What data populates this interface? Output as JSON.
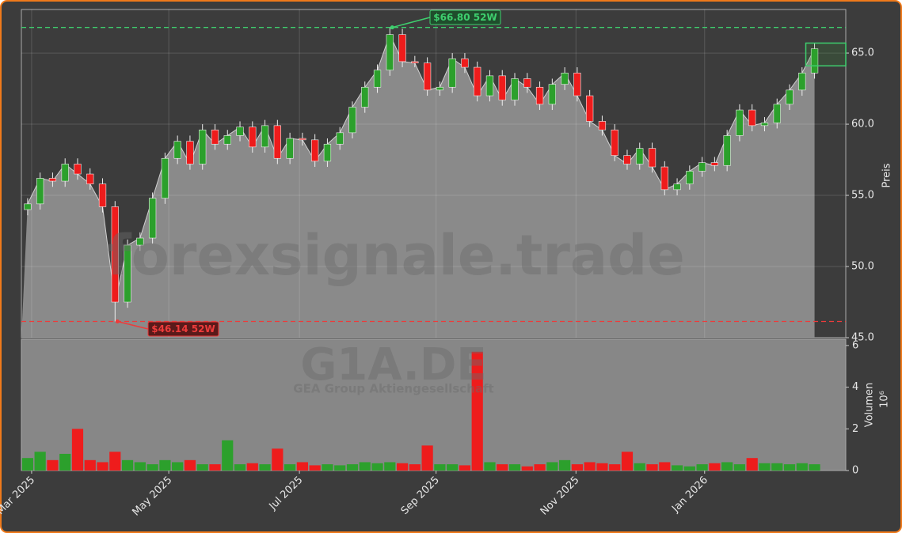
{
  "chart_data": {
    "type": "candlestick",
    "watermark": "forexsignale.trade",
    "symbol": "G1A.DE",
    "company": "GEA Group Aktiengesellschaft",
    "ylabel": "Preis",
    "volume_label": "Volumen",
    "volume_unit": "10⁶",
    "open": [
      54.0,
      54.4,
      56.2,
      56.0,
      57.2,
      56.5,
      55.8,
      54.2,
      47.5,
      51.5,
      52.0,
      54.8,
      57.6,
      58.8,
      57.2,
      59.6,
      58.6,
      59.2,
      59.8,
      58.4,
      59.9,
      57.6,
      59.0,
      58.9,
      57.4,
      58.6,
      59.4,
      61.2,
      62.6,
      63.8,
      66.3,
      64.4,
      64.3,
      62.4,
      62.6,
      64.6,
      64.0,
      62.0,
      63.4,
      61.7,
      63.2,
      62.6,
      61.4,
      62.8,
      63.6,
      62.0,
      60.2,
      59.6,
      57.8,
      57.2,
      58.3,
      57.0,
      55.4,
      55.8,
      56.7,
      57.3,
      57.1,
      59.2,
      61.0,
      59.9,
      60.1,
      61.4,
      62.4,
      63.6
    ],
    "high": [
      54.8,
      56.6,
      56.6,
      57.6,
      57.6,
      56.9,
      56.2,
      54.6,
      51.9,
      52.4,
      55.2,
      58.0,
      59.2,
      59.2,
      60.0,
      60.0,
      59.6,
      60.2,
      60.2,
      60.3,
      60.3,
      59.4,
      59.4,
      59.3,
      59.0,
      59.8,
      61.6,
      63.0,
      64.2,
      66.8,
      66.7,
      64.8,
      64.7,
      63.0,
      65.0,
      65.0,
      64.4,
      63.8,
      63.8,
      63.6,
      63.6,
      63.0,
      63.2,
      64.0,
      64.0,
      62.4,
      60.6,
      60.0,
      58.2,
      58.7,
      58.7,
      57.4,
      56.2,
      57.1,
      57.7,
      57.7,
      59.6,
      61.4,
      61.4,
      60.5,
      61.8,
      62.8,
      64.0,
      65.7
    ],
    "low": [
      53.6,
      54.0,
      55.6,
      55.6,
      56.1,
      55.4,
      53.8,
      46.14,
      47.1,
      51.1,
      51.6,
      54.4,
      57.2,
      56.8,
      56.8,
      58.2,
      58.2,
      58.8,
      58.0,
      58.0,
      57.2,
      57.2,
      58.5,
      57.0,
      57.0,
      58.2,
      59.0,
      60.8,
      62.2,
      63.4,
      64.0,
      64.0,
      62.0,
      62.0,
      62.2,
      63.6,
      61.6,
      61.6,
      61.3,
      61.3,
      62.2,
      61.0,
      61.0,
      62.4,
      61.6,
      59.8,
      59.2,
      57.4,
      56.8,
      56.8,
      56.6,
      55.0,
      55.0,
      55.4,
      56.3,
      56.7,
      56.7,
      58.8,
      59.5,
      59.5,
      59.7,
      61.0,
      62.0,
      63.2
    ],
    "close": [
      54.4,
      56.2,
      56.0,
      57.2,
      56.5,
      55.8,
      54.2,
      47.5,
      51.5,
      52.0,
      54.8,
      57.6,
      58.8,
      57.2,
      59.6,
      58.6,
      59.2,
      59.8,
      58.4,
      59.9,
      57.6,
      59.0,
      58.9,
      57.4,
      58.6,
      59.4,
      61.2,
      62.6,
      63.8,
      66.3,
      64.4,
      64.3,
      62.4,
      62.6,
      64.6,
      64.0,
      62.0,
      63.4,
      61.7,
      63.2,
      62.6,
      61.4,
      62.8,
      63.6,
      62.0,
      60.2,
      59.6,
      57.8,
      57.2,
      58.3,
      57.0,
      55.4,
      55.8,
      56.7,
      57.3,
      57.1,
      59.2,
      61.0,
      59.9,
      60.1,
      61.4,
      62.4,
      63.6,
      65.3
    ],
    "volume": [
      0.6,
      0.9,
      0.5,
      0.8,
      2.0,
      0.5,
      0.4,
      0.9,
      0.5,
      0.4,
      0.3,
      0.5,
      0.4,
      0.5,
      0.3,
      0.3,
      1.45,
      0.3,
      0.35,
      0.3,
      1.05,
      0.3,
      0.4,
      0.25,
      0.3,
      0.25,
      0.3,
      0.4,
      0.35,
      0.4,
      0.35,
      0.3,
      1.2,
      0.3,
      0.3,
      0.25,
      5.7,
      0.4,
      0.3,
      0.3,
      0.2,
      0.3,
      0.4,
      0.5,
      0.3,
      0.4,
      0.35,
      0.3,
      0.9,
      0.35,
      0.3,
      0.4,
      0.25,
      0.2,
      0.3,
      0.35,
      0.4,
      0.3,
      0.6,
      0.35,
      0.35,
      0.3,
      0.35,
      0.3
    ],
    "up_color": "#2ca02c",
    "down_color": "#ee1c1c",
    "high_52w": {
      "value": 66.8,
      "label": "$66.80 52W",
      "color": "#3ecf6e"
    },
    "low_52w": {
      "value": 46.14,
      "label": "$46.14 52W",
      "color": "#ee3b3b"
    },
    "range_box": {
      "low": 64.1,
      "high": 65.7
    },
    "xlim": [
      -0.5,
      65.5
    ],
    "xticks": [
      {
        "value": 0.32,
        "label": "Mar 2025"
      },
      {
        "value": 11.3,
        "label": "May 2025"
      },
      {
        "value": 21.76,
        "label": "Jul 2025"
      },
      {
        "value": 32.7,
        "label": "Sep 2025"
      },
      {
        "value": 43.9,
        "label": "Nov 2025"
      },
      {
        "value": 54.2,
        "label": "Jan 2026"
      }
    ],
    "ylim": [
      45,
      68.06
    ],
    "yticks": [
      {
        "value": 45,
        "label": "45.0"
      },
      {
        "value": 50,
        "label": "50.0"
      },
      {
        "value": 55,
        "label": "55.0"
      },
      {
        "value": 60,
        "label": "60.0"
      },
      {
        "value": 65,
        "label": "65.0"
      }
    ],
    "volume_ylim": [
      0,
      6.3
    ],
    "volume_yticks": [
      0,
      2,
      4,
      6
    ],
    "grid": true
  }
}
